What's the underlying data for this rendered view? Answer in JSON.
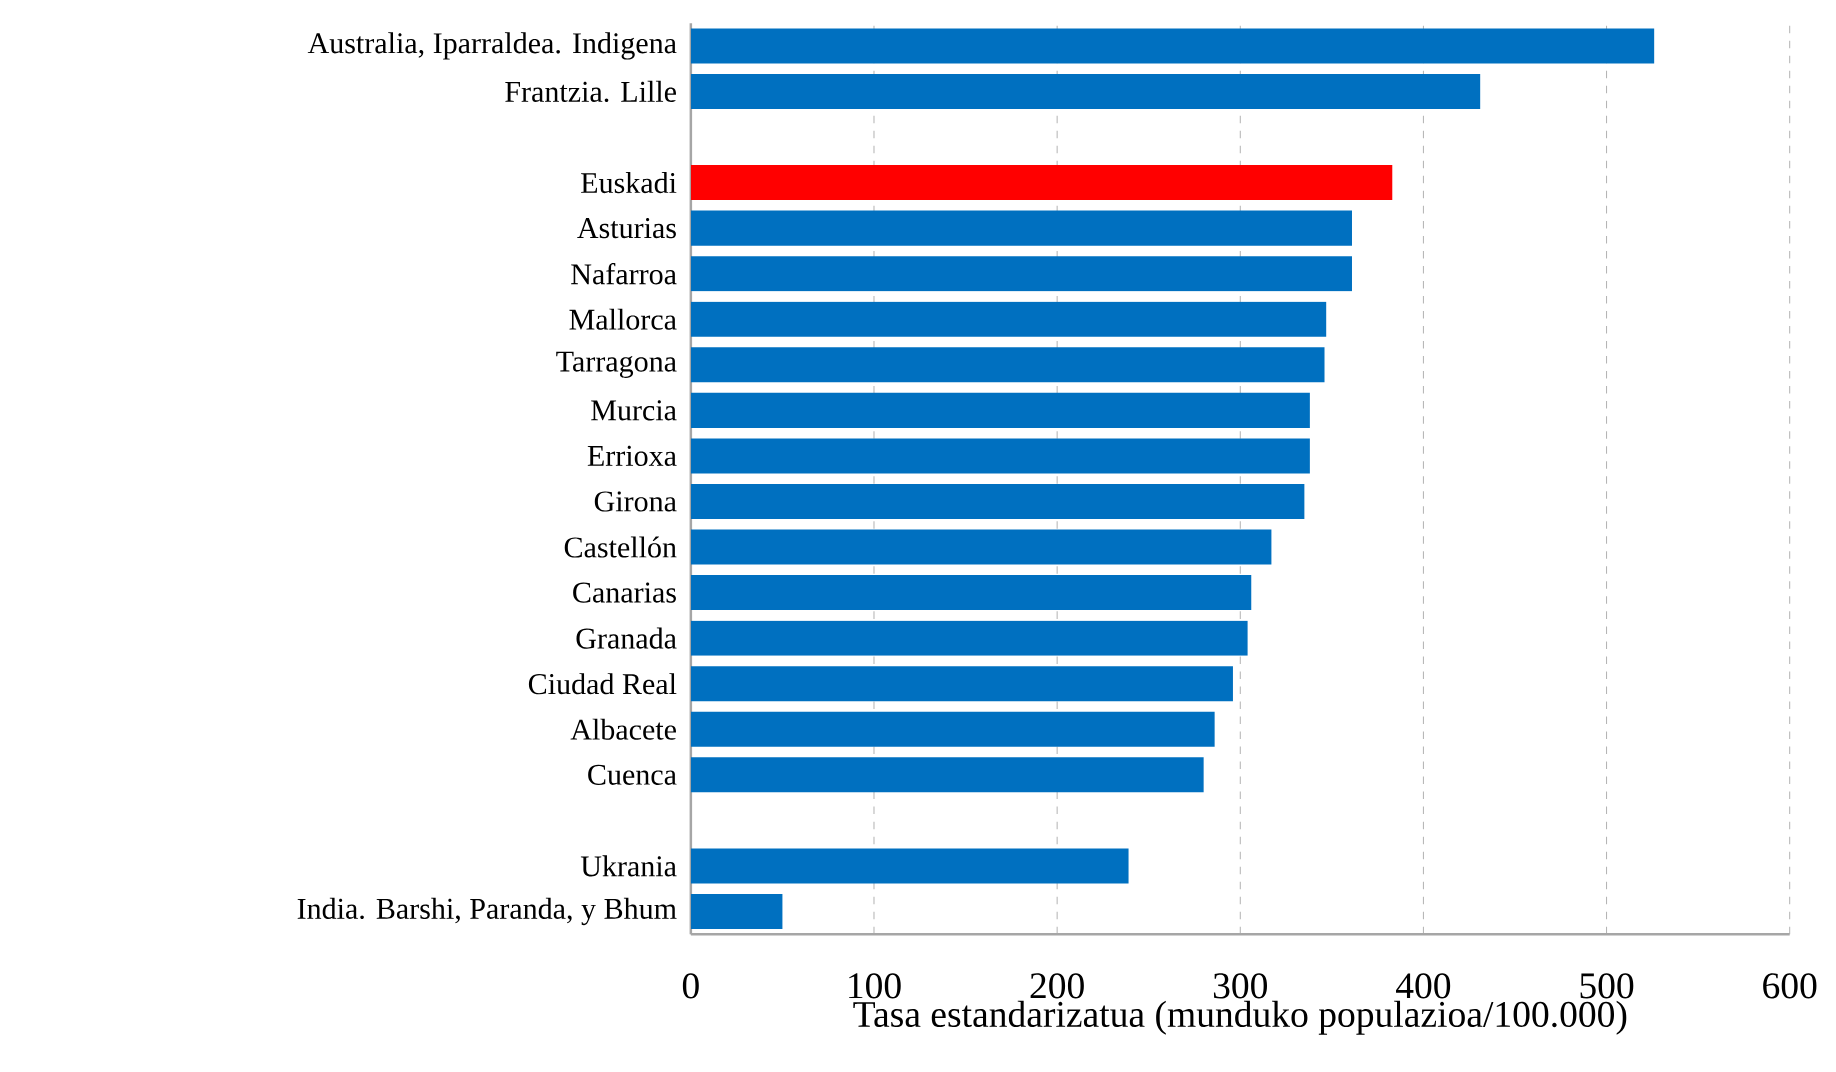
{
  "chart_data": {
    "type": "bar",
    "orientation": "horizontal",
    "xlabel": "Tasa estandarizatua (munduko populazioa/100.000)",
    "categories": [
      "Australia, Iparraldea. Indigena",
      "Frantzia. Lille",
      null,
      "Euskadi",
      "Asturias",
      "Nafarroa",
      "Mallorca",
      "Tarragona",
      "Murcia",
      "Errioxa",
      "Girona",
      "Castellón",
      "Canarias",
      "Granada",
      "Ciudad Real",
      "Albacete",
      "Cuenca",
      null,
      "Ukrania",
      "India. Barshi, Paranda, y Bhum"
    ],
    "values": [
      526,
      431,
      null,
      383,
      361,
      361,
      347,
      346,
      338,
      338,
      335,
      317,
      306,
      304,
      296,
      286,
      280,
      null,
      239,
      50
    ],
    "colors": [
      "#0070c0",
      "#0070c0",
      null,
      "#ff0000",
      "#0070c0",
      "#0070c0",
      "#0070c0",
      "#0070c0",
      "#0070c0",
      "#0070c0",
      "#0070c0",
      "#0070c0",
      "#0070c0",
      "#0070c0",
      "#0070c0",
      "#0070c0",
      "#0070c0",
      null,
      "#0070c0",
      "#0070c0"
    ],
    "xlim": [
      0,
      600
    ],
    "xticks": [
      0,
      100,
      200,
      300,
      400,
      500,
      600
    ],
    "grid": "x"
  }
}
